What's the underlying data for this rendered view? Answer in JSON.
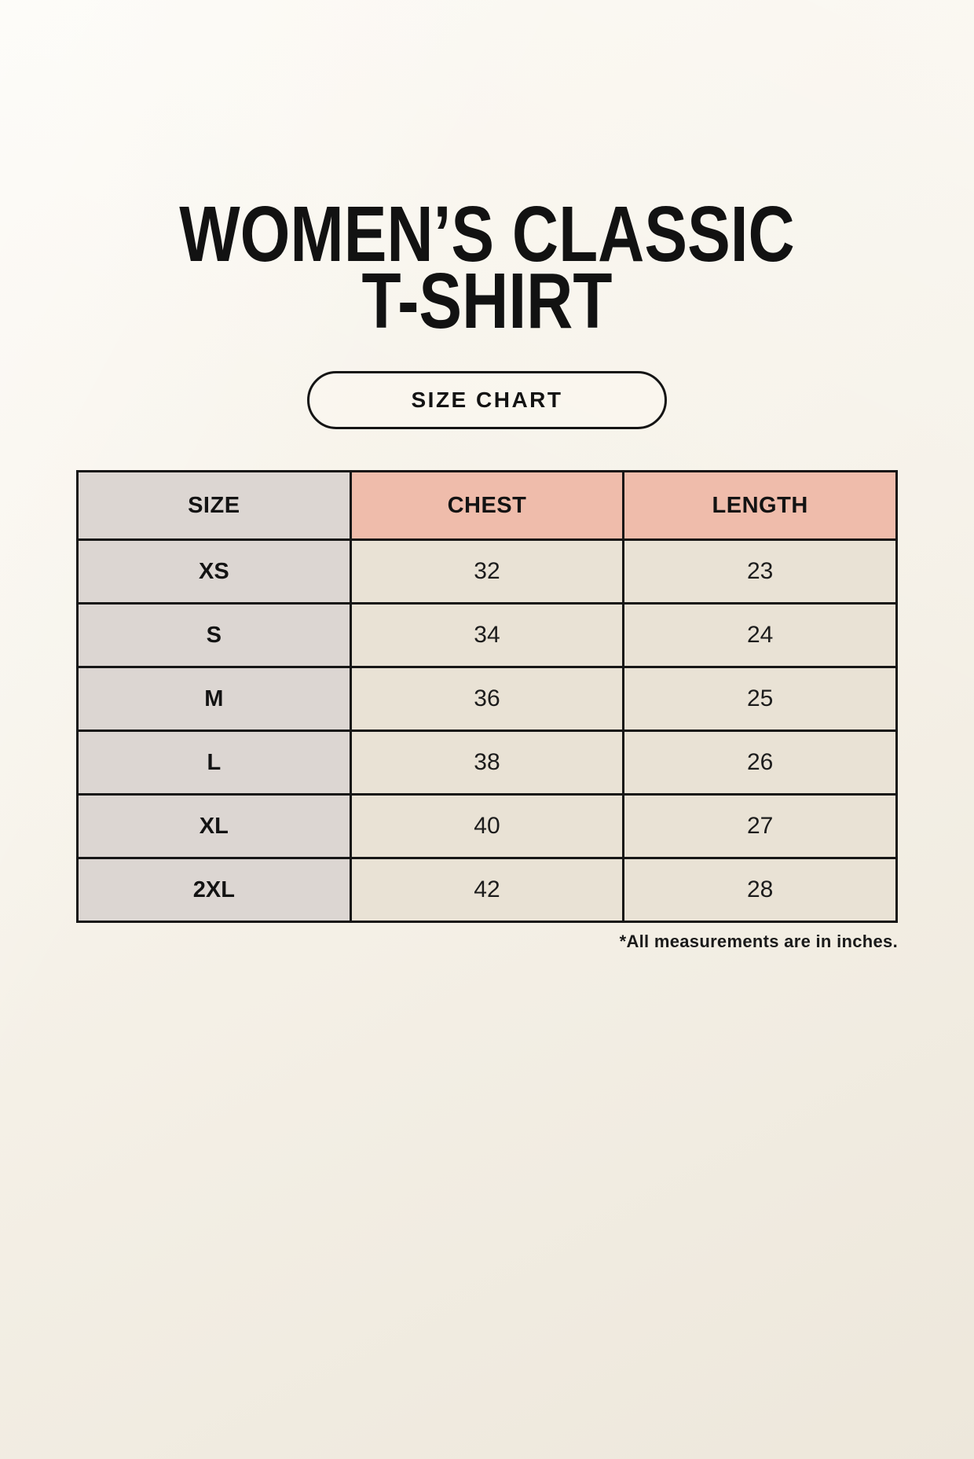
{
  "page": {
    "title_line1": "WOMEN’S CLASSIC",
    "title_line2": "T-SHIRT",
    "size_chart_button": "SIZE CHART",
    "footnote": "*All measurements are in inches."
  },
  "chart_data": {
    "type": "table",
    "title": "WOMEN’S CLASSIC T-SHIRT",
    "subtitle": "SIZE CHART",
    "columns": [
      "SIZE",
      "CHEST",
      "LENGTH"
    ],
    "rows": [
      [
        "XS",
        "32",
        "23"
      ],
      [
        "S",
        "34",
        "24"
      ],
      [
        "M",
        "36",
        "25"
      ],
      [
        "L",
        "38",
        "26"
      ],
      [
        "XL",
        "40",
        "27"
      ],
      [
        "2XL",
        "42",
        "28"
      ]
    ],
    "units": "inches"
  },
  "colors": {
    "background": "#f6f2e9",
    "size_column": "#dcd6d2",
    "measure_header": "#efbcab",
    "data_cell": "#e9e2d5",
    "border": "#161616",
    "text": "#121212"
  }
}
